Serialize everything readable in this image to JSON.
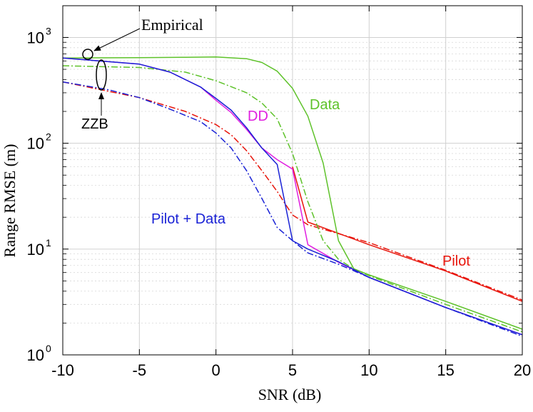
{
  "chart_data": {
    "type": "line",
    "yscale": "log",
    "xlabel": "SNR (dB)",
    "ylabel": "Range RMSE (m)",
    "xlim": [
      -10,
      20
    ],
    "ylim": [
      1,
      2000
    ],
    "xticks": [
      -10,
      -5,
      0,
      5,
      10,
      15,
      20
    ],
    "xtick_labels": [
      "-10",
      "-5",
      "0",
      "5",
      "10",
      "15",
      "20"
    ],
    "yticks": [
      {
        "value": 1,
        "base": "10",
        "exp": "0"
      },
      {
        "value": 10,
        "base": "10",
        "exp": "1"
      },
      {
        "value": 100,
        "base": "10",
        "exp": "2"
      },
      {
        "value": 1000,
        "base": "10",
        "exp": "3"
      }
    ],
    "grid": true,
    "series": [
      {
        "name": "Pilot (empirical)",
        "color": "#e8140a",
        "style": "solid",
        "x": [
          5,
          6,
          10,
          15,
          20
        ],
        "y": [
          60,
          18,
          11,
          6.2,
          3.2
        ]
      },
      {
        "name": "Pilot (ZZB)",
        "color": "#e8140a",
        "style": "dashdot",
        "x": [
          -10,
          -5,
          -2,
          0,
          1,
          2,
          3,
          4,
          4.5,
          5,
          6,
          8,
          10,
          15,
          20
        ],
        "y": [
          380,
          270,
          200,
          150,
          120,
          85,
          55,
          35,
          27,
          21,
          17,
          14,
          11.5,
          6.3,
          3.3
        ]
      },
      {
        "name": "Data (empirical)",
        "color": "#5ec22a",
        "style": "solid",
        "x": [
          -10,
          -5,
          -2,
          0,
          2,
          3,
          4,
          5,
          6,
          7,
          8,
          9,
          10,
          15,
          20
        ],
        "y": [
          640,
          645,
          650,
          655,
          630,
          580,
          480,
          330,
          180,
          65,
          12,
          6.5,
          5.7,
          3.2,
          1.75
        ]
      },
      {
        "name": "Data (ZZB)",
        "color": "#5ec22a",
        "style": "dashdot",
        "x": [
          -10,
          -5,
          -2,
          0,
          2,
          3,
          4,
          5,
          6,
          7,
          8,
          9,
          10,
          15,
          20
        ],
        "y": [
          540,
          520,
          470,
          390,
          300,
          240,
          170,
          80,
          28,
          12,
          8,
          6.5,
          5.6,
          3.0,
          1.65
        ]
      },
      {
        "name": "DD",
        "color": "#e020e0",
        "style": "solid",
        "x": [
          -10,
          -5,
          -3,
          -1,
          0,
          1,
          2,
          3,
          4,
          5,
          6,
          8,
          10,
          15,
          20
        ],
        "y": [
          640,
          560,
          470,
          340,
          255,
          195,
          135,
          90,
          70,
          57,
          11,
          7.5,
          5.4,
          2.8,
          1.55
        ]
      },
      {
        "name": "Pilot + Data (empirical)",
        "color": "#1a22d6",
        "style": "solid",
        "x": [
          -10,
          -5,
          -3,
          -1,
          0,
          1,
          2,
          3,
          4,
          5,
          6,
          8,
          10,
          15,
          20
        ],
        "y": [
          640,
          560,
          470,
          340,
          265,
          205,
          140,
          90,
          63,
          12,
          10,
          7.6,
          5.4,
          2.8,
          1.55
        ]
      },
      {
        "name": "Pilot + Data (ZZB)",
        "color": "#1a22d6",
        "style": "dashdot",
        "x": [
          -10,
          -7,
          -5,
          -3,
          -1,
          0,
          1,
          2,
          3,
          4,
          5,
          6,
          8,
          10,
          15,
          20
        ],
        "y": [
          380,
          320,
          270,
          210,
          160,
          125,
          90,
          55,
          30,
          16,
          12,
          9.2,
          7.2,
          5.4,
          2.8,
          1.5
        ]
      }
    ],
    "labels": {
      "empirical": "Empirical",
      "zzb": "ZZB",
      "data": "Data",
      "dd": "DD",
      "pilot_data": "Pilot + Data",
      "pilot": "Pilot"
    },
    "label_colors": {
      "empirical": "#000000",
      "zzb": "#000000",
      "data": "#5ec22a",
      "dd": "#e020e0",
      "pilot_data": "#1a22d6",
      "pilot": "#e8140a"
    }
  }
}
